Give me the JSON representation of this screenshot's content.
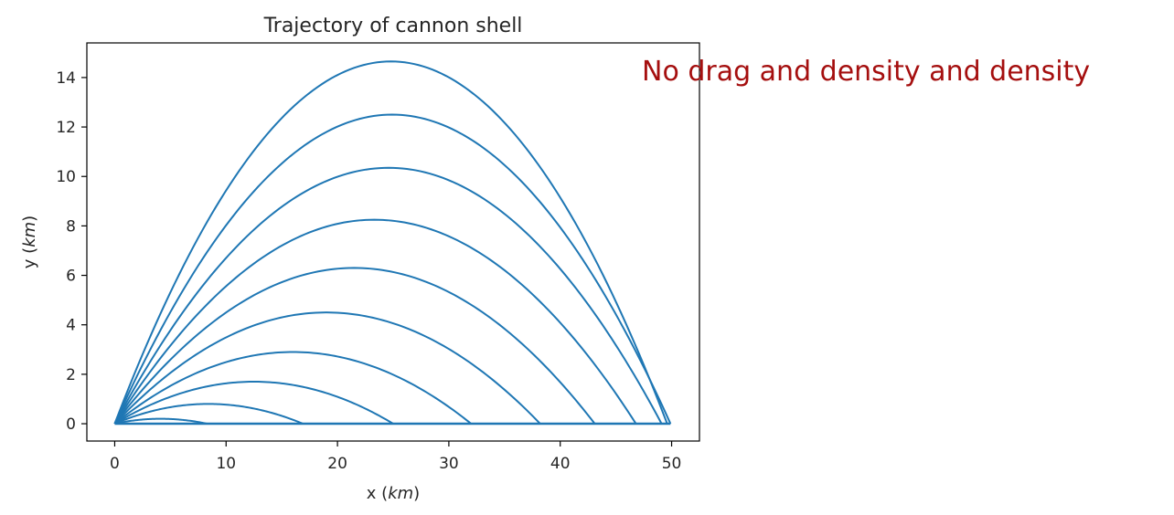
{
  "chart_data": {
    "type": "line",
    "title": "Trajectory of cannon shell",
    "xlabel": "x",
    "xlabel_unit": "km",
    "ylabel": "y",
    "ylabel_unit": "km",
    "xlim": [
      -2.5,
      52.5
    ],
    "ylim": [
      -0.7,
      15.4
    ],
    "xticks": [
      0,
      10,
      20,
      30,
      40,
      50
    ],
    "yticks": [
      0,
      2,
      4,
      6,
      8,
      10,
      12,
      14
    ],
    "line_color": "#1f77b4",
    "annotation": {
      "text": "No drag and density and density",
      "color": "#a50f0f"
    },
    "series": [
      {
        "apex_x": 4.1,
        "apex_y": 0.2,
        "range_x": 8.3
      },
      {
        "apex_x": 8.4,
        "apex_y": 0.8,
        "range_x": 16.9
      },
      {
        "apex_x": 12.5,
        "apex_y": 1.7,
        "range_x": 25.0
      },
      {
        "apex_x": 16.0,
        "apex_y": 2.9,
        "range_x": 32.0
      },
      {
        "apex_x": 19.0,
        "apex_y": 4.5,
        "range_x": 38.2
      },
      {
        "apex_x": 21.5,
        "apex_y": 6.3,
        "range_x": 43.1
      },
      {
        "apex_x": 23.3,
        "apex_y": 8.25,
        "range_x": 46.8
      },
      {
        "apex_x": 24.6,
        "apex_y": 10.35,
        "range_x": 49.1
      },
      {
        "apex_x": 24.9,
        "apex_y": 12.5,
        "range_x": 49.9
      },
      {
        "apex_x": 24.8,
        "apex_y": 14.65,
        "range_x": 49.6
      }
    ]
  }
}
